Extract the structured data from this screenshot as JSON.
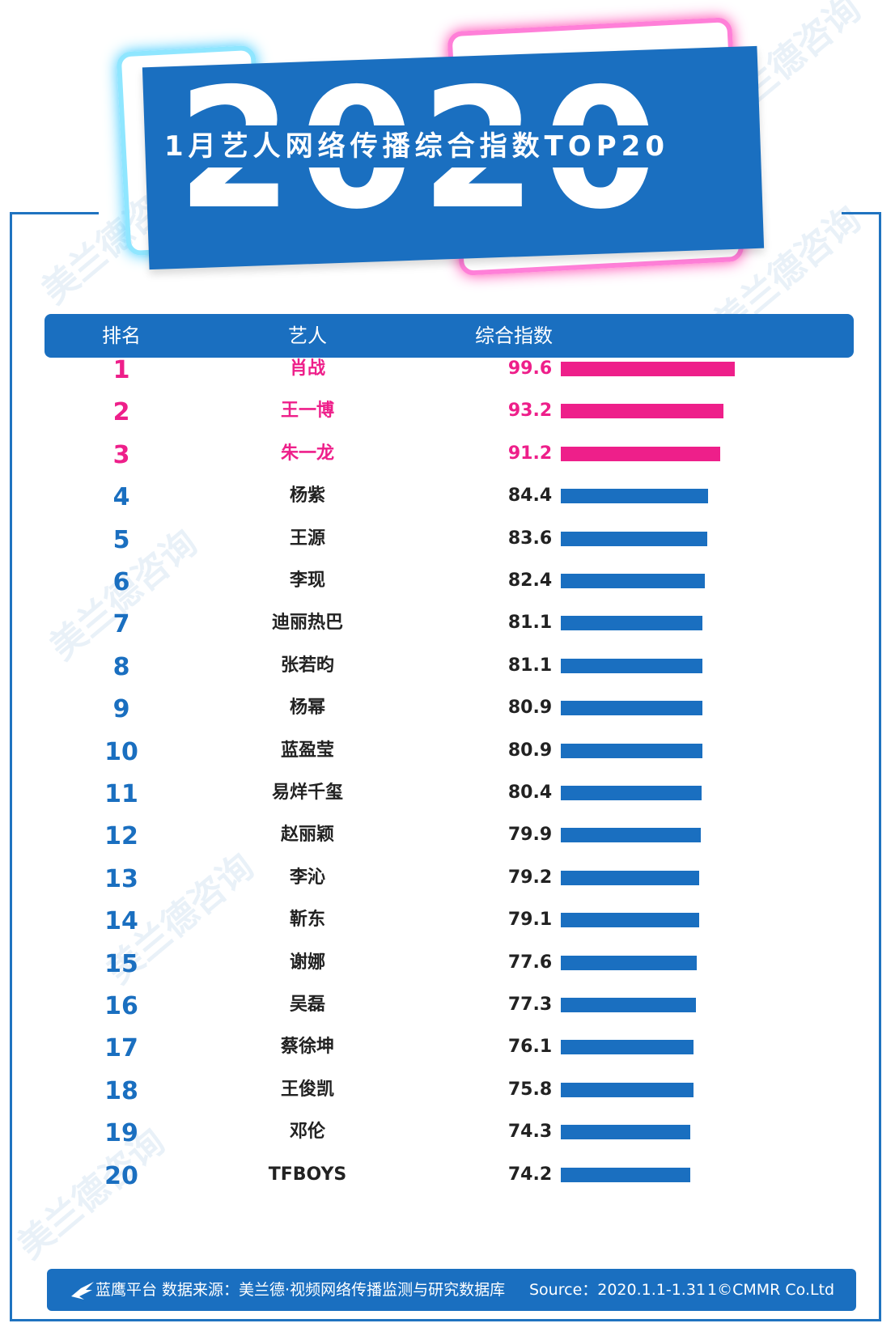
{
  "header": {
    "year": "2020",
    "title": "1月艺人网络传播综合指数TOP20"
  },
  "table": {
    "col_rank": "排名",
    "col_artist": "艺人",
    "col_score": "综合指数"
  },
  "colors": {
    "accent_blue": "#1a6fc0",
    "highlight_pink": "#ee1f8a"
  },
  "chart_data": {
    "type": "bar",
    "title": "1月艺人网络传播综合指数TOP20",
    "ranks": [
      "1",
      "2",
      "3",
      "4",
      "5",
      "6",
      "7",
      "8",
      "9",
      "10",
      "11",
      "12",
      "13",
      "14",
      "15",
      "16",
      "17",
      "18",
      "19",
      "20"
    ],
    "categories": [
      "肖战",
      "王一博",
      "朱一龙",
      "杨紫",
      "王源",
      "李现",
      "迪丽热巴",
      "张若昀",
      "杨幂",
      "蓝盈莹",
      "易烊千玺",
      "赵丽颖",
      "李沁",
      "靳东",
      "谢娜",
      "吴磊",
      "蔡徐坤",
      "王俊凯",
      "邓伦",
      "TFBOYS"
    ],
    "values": [
      99.6,
      93.2,
      91.2,
      84.4,
      83.6,
      82.4,
      81.1,
      81.1,
      80.9,
      80.9,
      80.4,
      79.9,
      79.2,
      79.1,
      77.6,
      77.3,
      76.1,
      75.8,
      74.3,
      74.2
    ],
    "score_labels": [
      "99.6",
      "93.2",
      "91.2",
      "84.4",
      "83.6",
      "82.4",
      "81.1",
      "81.1",
      "80.9",
      "80.9",
      "80.4",
      "79.9",
      "79.2",
      "79.1",
      "77.6",
      "77.3",
      "76.1",
      "75.8",
      "74.3",
      "74.2"
    ],
    "highlight_top": 3,
    "xlim": [
      0,
      100
    ],
    "orientation": "horizontal"
  },
  "footer": {
    "text": "蓝鹰平台  数据来源：美兰德·视频网络传播监测与研究数据库",
    "source": "Source：2020.1.1-1.31",
    "copyright": "1©CMMR Co.Ltd"
  },
  "watermark": {
    "text": "美兰德咨询"
  }
}
